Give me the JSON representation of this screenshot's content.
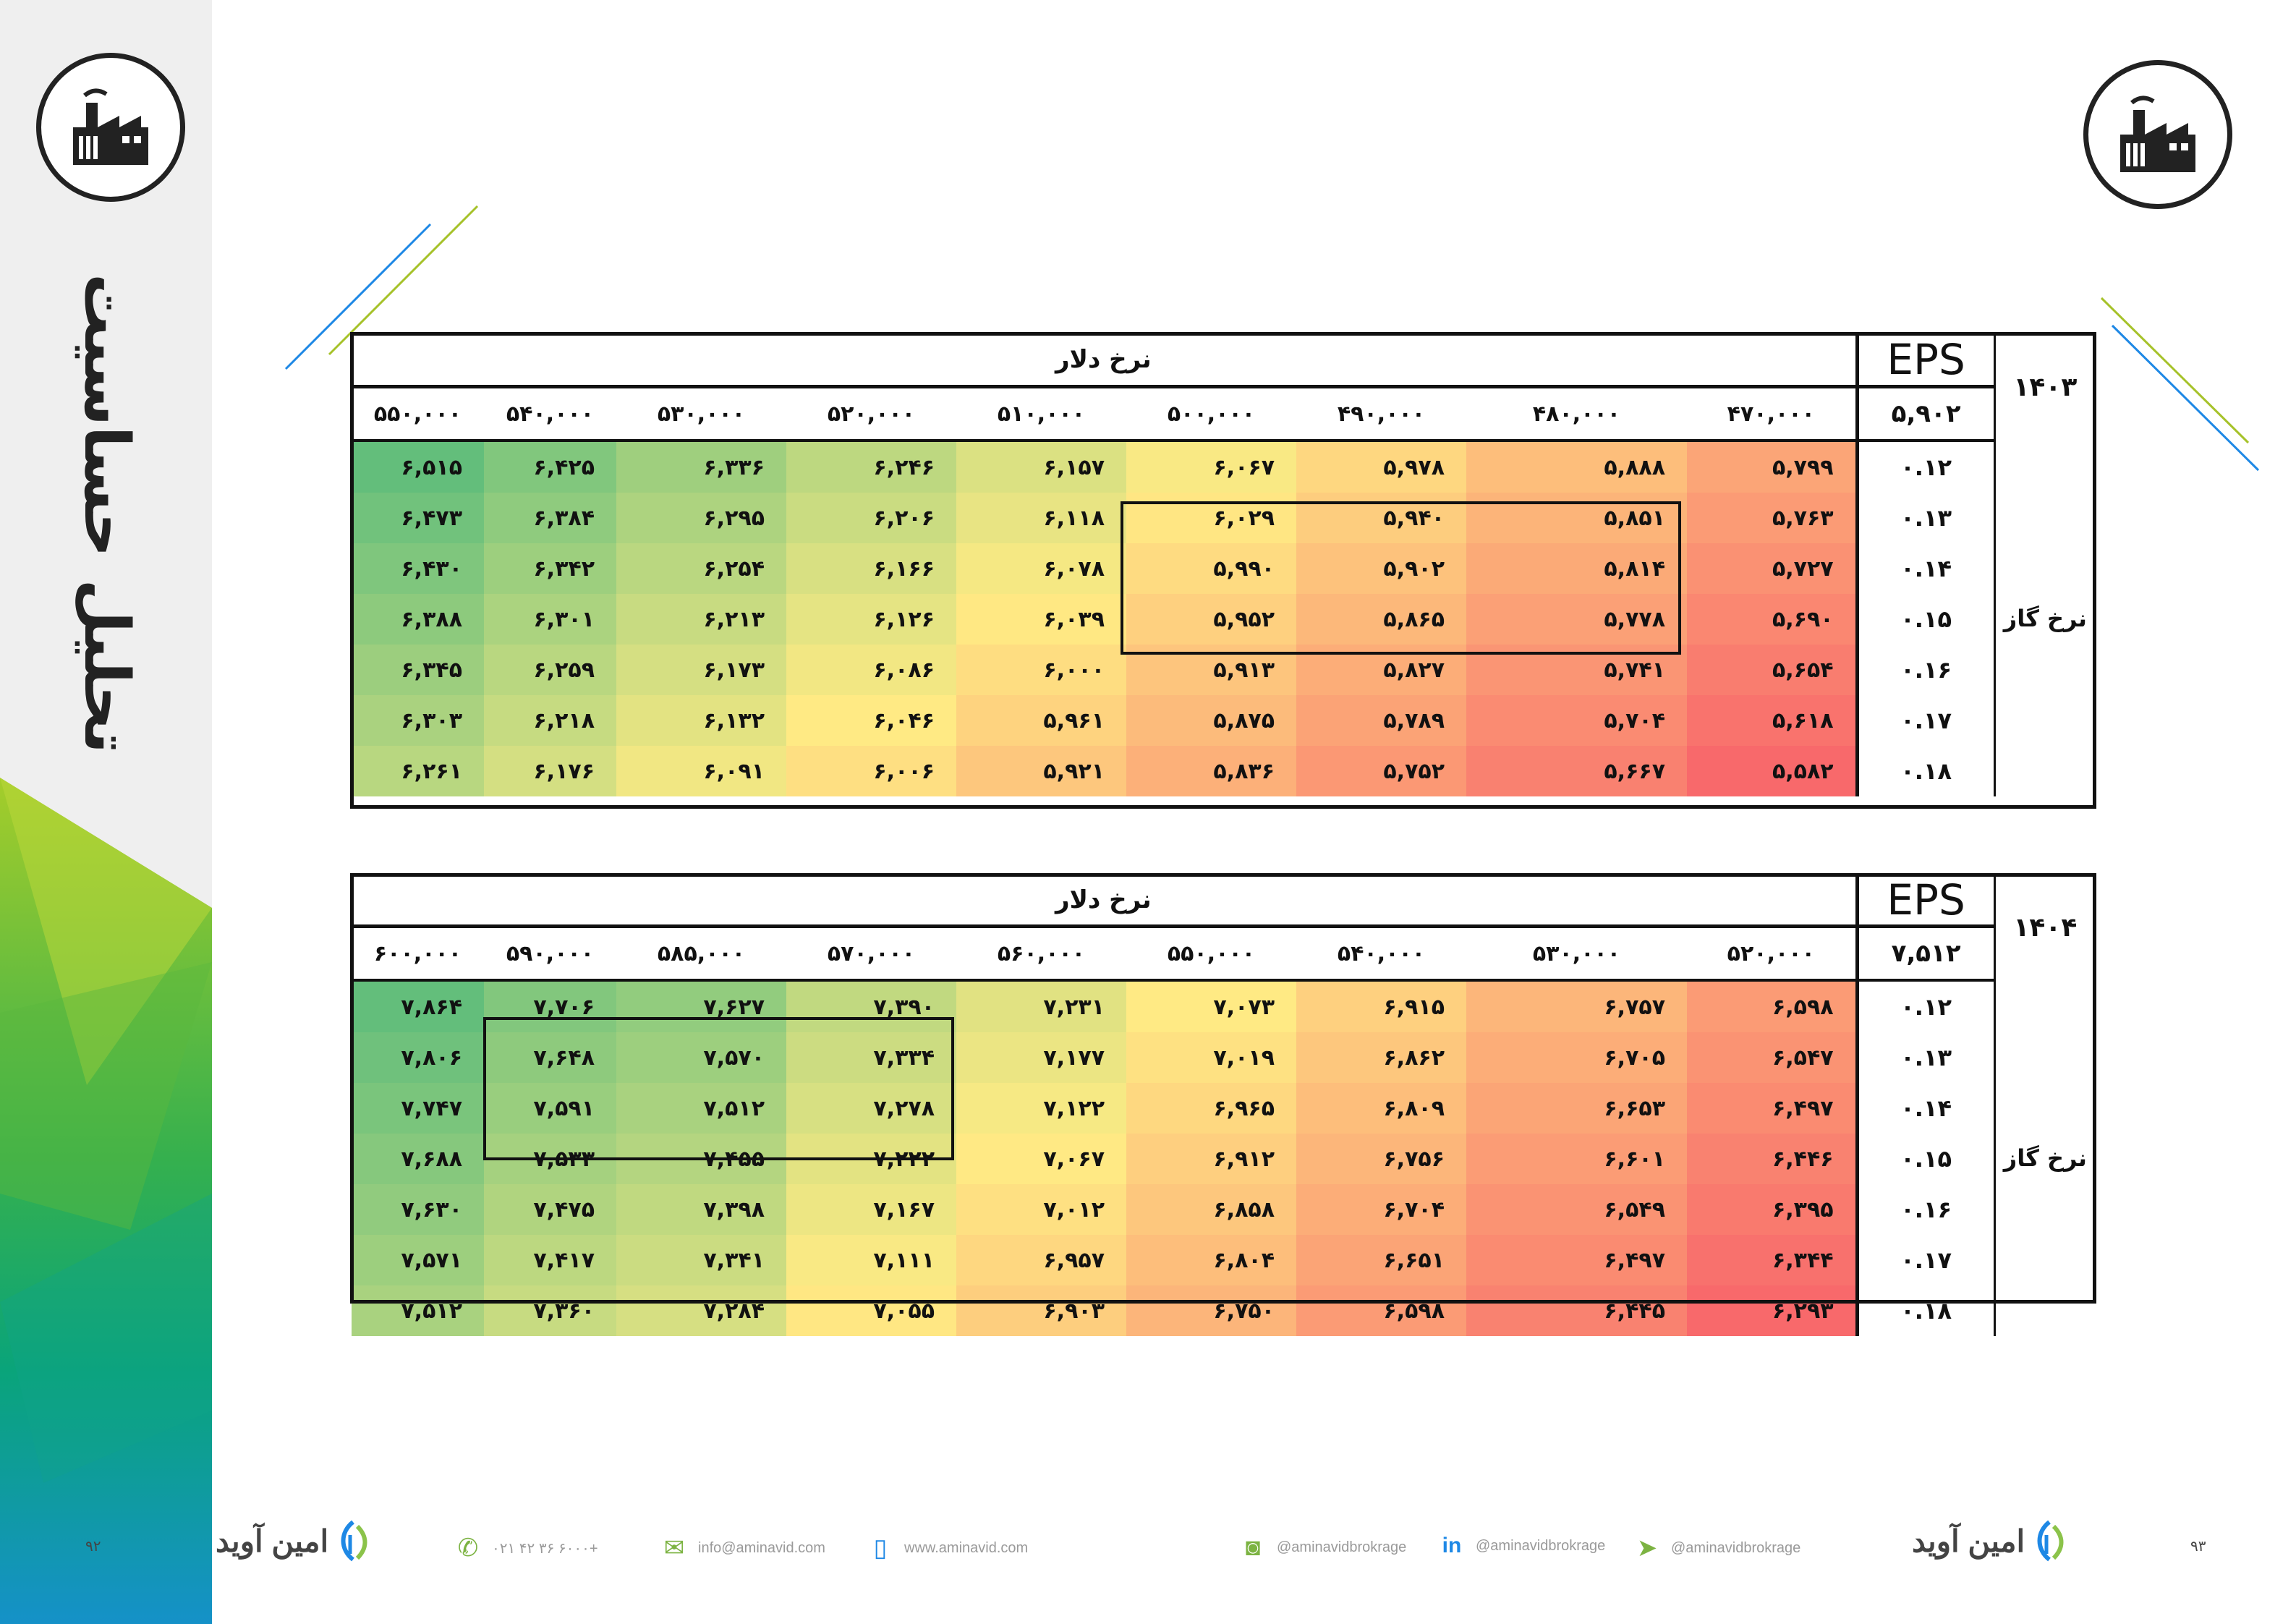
{
  "side_title": "تحلیل حساسیت",
  "icons": {
    "logo": "factory-icon"
  },
  "tables": [
    {
      "title": "نرخ دلار",
      "eps_label": "EPS",
      "year": "۱۴۰۳",
      "eps_value": "۵,۹۰۲",
      "row_label": "نرخ گاز",
      "columns": [
        "۵۵۰,۰۰۰",
        "۵۴۰,۰۰۰",
        "۵۳۰,۰۰۰",
        "۵۲۰,۰۰۰",
        "۵۱۰,۰۰۰",
        "۵۰۰,۰۰۰",
        "۴۹۰,۰۰۰",
        "۴۸۰,۰۰۰",
        "۴۷۰,۰۰۰"
      ],
      "rows": [
        {
          "rate": "۰.۱۲",
          "values": [
            "۶,۵۱۵",
            "۶,۴۲۵",
            "۶,۳۳۶",
            "۶,۲۴۶",
            "۶,۱۵۷",
            "۶,۰۶۷",
            "۵,۹۷۸",
            "۵,۸۸۸",
            "۵,۷۹۹"
          ]
        },
        {
          "rate": "۰.۱۳",
          "values": [
            "۶,۴۷۳",
            "۶,۳۸۴",
            "۶,۲۹۵",
            "۶,۲۰۶",
            "۶,۱۱۸",
            "۶,۰۲۹",
            "۵,۹۴۰",
            "۵,۸۵۱",
            "۵,۷۶۳"
          ]
        },
        {
          "rate": "۰.۱۴",
          "values": [
            "۶,۴۳۰",
            "۶,۳۴۲",
            "۶,۲۵۴",
            "۶,۱۶۶",
            "۶,۰۷۸",
            "۵,۹۹۰",
            "۵,۹۰۲",
            "۵,۸۱۴",
            "۵,۷۲۷"
          ]
        },
        {
          "rate": "۰.۱۵",
          "values": [
            "۶,۳۸۸",
            "۶,۳۰۱",
            "۶,۲۱۳",
            "۶,۱۲۶",
            "۶,۰۳۹",
            "۵,۹۵۲",
            "۵,۸۶۵",
            "۵,۷۷۸",
            "۵,۶۹۰"
          ]
        },
        {
          "rate": "۰.۱۶",
          "values": [
            "۶,۳۴۵",
            "۶,۲۵۹",
            "۶,۱۷۳",
            "۶,۰۸۶",
            "۶,۰۰۰",
            "۵,۹۱۳",
            "۵,۸۲۷",
            "۵,۷۴۱",
            "۵,۶۵۴"
          ]
        },
        {
          "rate": "۰.۱۷",
          "values": [
            "۶,۳۰۳",
            "۶,۲۱۸",
            "۶,۱۳۲",
            "۶,۰۴۶",
            "۵,۹۶۱",
            "۵,۸۷۵",
            "۵,۷۸۹",
            "۵,۷۰۴",
            "۵,۶۱۸"
          ]
        },
        {
          "rate": "۰.۱۸",
          "values": [
            "۶,۲۶۱",
            "۶,۱۷۶",
            "۶,۰۹۱",
            "۶,۰۰۶",
            "۵,۹۲۱",
            "۵,۸۳۶",
            "۵,۷۵۲",
            "۵,۶۶۷",
            "۵,۵۸۲"
          ]
        }
      ]
    },
    {
      "title": "نرخ دلار",
      "eps_label": "EPS",
      "year": "۱۴۰۴",
      "eps_value": "۷,۵۱۲",
      "row_label": "نرخ گاز",
      "columns": [
        "۶۰۰,۰۰۰",
        "۵۹۰,۰۰۰",
        "۵۸۵,۰۰۰",
        "۵۷۰,۰۰۰",
        "۵۶۰,۰۰۰",
        "۵۵۰,۰۰۰",
        "۵۴۰,۰۰۰",
        "۵۳۰,۰۰۰",
        "۵۲۰,۰۰۰"
      ],
      "rows": [
        {
          "rate": "۰.۱۲",
          "values": [
            "۷,۸۶۴",
            "۷,۷۰۶",
            "۷,۶۲۷",
            "۷,۳۹۰",
            "۷,۲۳۱",
            "۷,۰۷۳",
            "۶,۹۱۵",
            "۶,۷۵۷",
            "۶,۵۹۸"
          ]
        },
        {
          "rate": "۰.۱۳",
          "values": [
            "۷,۸۰۶",
            "۷,۶۴۸",
            "۷,۵۷۰",
            "۷,۳۳۴",
            "۷,۱۷۷",
            "۷,۰۱۹",
            "۶,۸۶۲",
            "۶,۷۰۵",
            "۶,۵۴۷"
          ]
        },
        {
          "rate": "۰.۱۴",
          "values": [
            "۷,۷۴۷",
            "۷,۵۹۱",
            "۷,۵۱۲",
            "۷,۲۷۸",
            "۷,۱۲۲",
            "۶,۹۶۵",
            "۶,۸۰۹",
            "۶,۶۵۳",
            "۶,۴۹۷"
          ]
        },
        {
          "rate": "۰.۱۵",
          "values": [
            "۷,۶۸۸",
            "۷,۵۳۳",
            "۷,۴۵۵",
            "۷,۲۲۲",
            "۷,۰۶۷",
            "۶,۹۱۲",
            "۶,۷۵۶",
            "۶,۶۰۱",
            "۶,۴۴۶"
          ]
        },
        {
          "rate": "۰.۱۶",
          "values": [
            "۷,۶۳۰",
            "۷,۴۷۵",
            "۷,۳۹۸",
            "۷,۱۶۷",
            "۷,۰۱۲",
            "۶,۸۵۸",
            "۶,۷۰۴",
            "۶,۵۴۹",
            "۶,۳۹۵"
          ]
        },
        {
          "rate": "۰.۱۷",
          "values": [
            "۷,۵۷۱",
            "۷,۴۱۷",
            "۷,۳۴۱",
            "۷,۱۱۱",
            "۶,۹۵۷",
            "۶,۸۰۴",
            "۶,۶۵۱",
            "۶,۴۹۷",
            "۶,۳۴۴"
          ]
        },
        {
          "rate": "۰.۱۸",
          "values": [
            "۷,۵۱۲",
            "۷,۳۶۰",
            "۷,۲۸۴",
            "۷,۰۵۵",
            "۶,۹۰۳",
            "۶,۷۵۰",
            "۶,۵۹۸",
            "۶,۴۴۵",
            "۶,۲۹۳"
          ]
        }
      ]
    }
  ],
  "footer": {
    "brand": "امین آوید",
    "phone": "۰۲۱ ۴۲ ۳۶ ۶۰۰۰+",
    "email": "info@aminavid.com",
    "website": "www.aminavid.com",
    "instagram": "@aminavidbrokrage",
    "linkedin": "@aminavidbrokrage",
    "telegram": "@aminavidbrokrage",
    "page_left": "۹۲",
    "page_right": "۹۳",
    "icons": [
      "phone-icon",
      "mail-icon",
      "mouse-icon",
      "instagram-icon",
      "linkedin-icon",
      "telegram-icon",
      "brand-logo-icon"
    ]
  },
  "colors": {
    "high": "#63be7b",
    "mid": "#ffeb84",
    "low": "#f8696b",
    "accent_green": "#8bc34a",
    "accent_blue": "#1e88e5"
  }
}
